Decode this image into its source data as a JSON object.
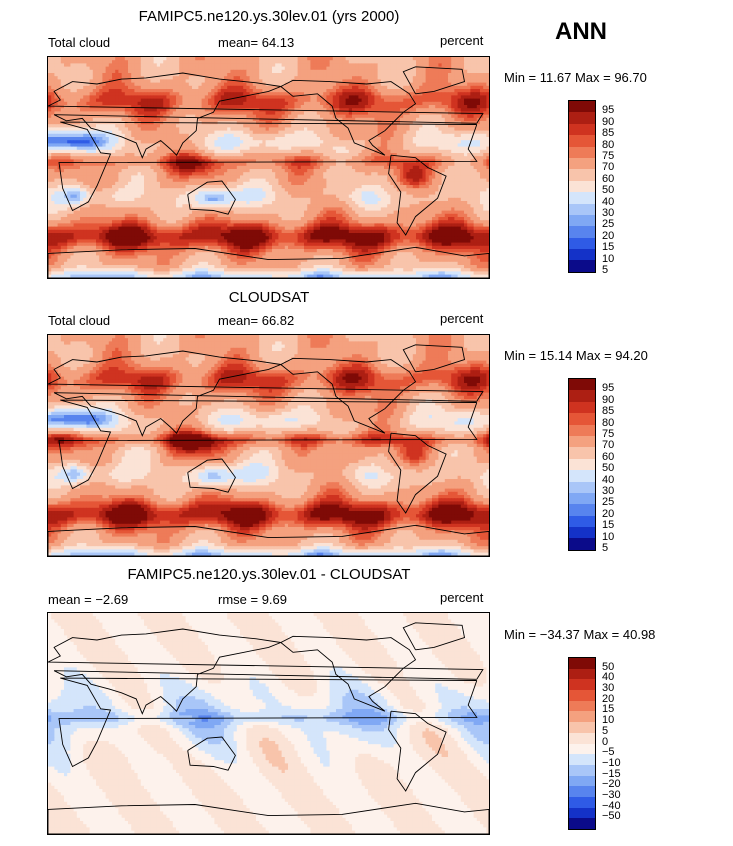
{
  "season": "ANN",
  "palette": {
    "abs": [
      "#0b0b8a",
      "#1432c8",
      "#2f5be6",
      "#5884ee",
      "#80a8f4",
      "#a9c6f8",
      "#d4e5fb",
      "#fbe3d6",
      "#f8c4ab",
      "#f4a17f",
      "#ee7b58",
      "#e55637",
      "#cf3320",
      "#ad1f13",
      "#7f0a06"
    ],
    "diff": [
      "#0b0b8a",
      "#1432c8",
      "#2f5be6",
      "#5884ee",
      "#80a8f4",
      "#a9c6f8",
      "#d4e5fb",
      "#fdf2ec",
      "#fbe3d6",
      "#f8c4ab",
      "#f4a17f",
      "#ee7b58",
      "#e55637",
      "#cf3320",
      "#ad1f13",
      "#7f0a06"
    ]
  },
  "panels": [
    {
      "title": "FAMIPC5.ne120.ys.30lev.01 (yrs 2000)",
      "left_label": "Total cloud",
      "mid_label": "mean=  64.13",
      "units": "percent",
      "minmax": "Min =  11.67 Max =  96.70",
      "levels": [
        "95",
        "90",
        "85",
        "80",
        "75",
        "70",
        "60",
        "50",
        "40",
        "30",
        "25",
        "20",
        "15",
        "10",
        "5"
      ],
      "kind": "model"
    },
    {
      "title": "CLOUDSAT",
      "left_label": "Total cloud",
      "mid_label": "mean=  66.82",
      "units": "percent",
      "minmax": "Min =  15.14 Max =  94.20",
      "levels": [
        "95",
        "90",
        "85",
        "80",
        "75",
        "70",
        "60",
        "50",
        "40",
        "30",
        "25",
        "20",
        "15",
        "10",
        "5"
      ],
      "kind": "obs"
    },
    {
      "title": "FAMIPC5.ne120.ys.30lev.01 - CLOUDSAT",
      "left_label": "mean =  −2.69",
      "mid_label": "rmse =   9.69",
      "units": "percent",
      "minmax": "Min = −34.37 Max =  40.98",
      "levels": [
        "50",
        "40",
        "30",
        "20",
        "15",
        "10",
        "5",
        "0",
        "−5",
        "−10",
        "−15",
        "−20",
        "−30",
        "−40",
        "−50"
      ],
      "kind": "diff"
    }
  ]
}
